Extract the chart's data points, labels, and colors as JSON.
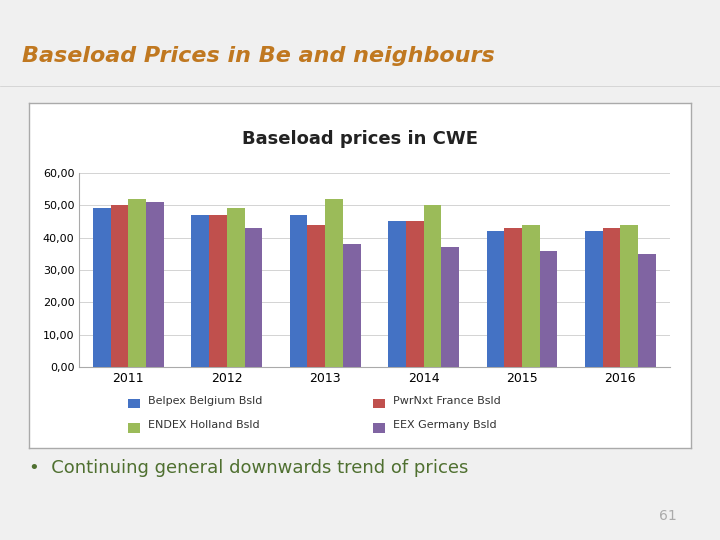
{
  "title": "Baseload prices in CWE",
  "page_title": "Baseload Prices in Be and neighbours",
  "bullet": "Continuing general downwards trend of prices",
  "page_number": "61",
  "years": [
    2011,
    2012,
    2013,
    2014,
    2015,
    2016
  ],
  "series": [
    {
      "label": "Belpex Belgium Bsld",
      "color": "#4472C4",
      "values": [
        49,
        47,
        47,
        45,
        42,
        42
      ]
    },
    {
      "label": "PwrNxt France Bsld",
      "color": "#C0504D",
      "values": [
        50,
        47,
        44,
        45,
        43,
        43
      ]
    },
    {
      "label": "ENDEX Holland Bsld",
      "color": "#9BBB59",
      "values": [
        52,
        49,
        52,
        50,
        44,
        44
      ]
    },
    {
      "label": "EEX Germany Bsld",
      "color": "#8064A2",
      "values": [
        51,
        43,
        38,
        37,
        36,
        35
      ]
    }
  ],
  "ylim": [
    0,
    60
  ],
  "yticks": [
    0,
    10,
    20,
    30,
    40,
    50,
    60
  ],
  "ytick_labels": [
    "0,00",
    "10,00",
    "20,00",
    "30,00",
    "40,00",
    "50,00",
    "60,00"
  ],
  "slide_bg": "#F0F0F0",
  "chart_panel_bg": "#FFFFFF",
  "chart_panel_border": "#AAAAAA",
  "title_color": "#C07820",
  "title_fontsize": 16,
  "bullet_color": "#4F7030",
  "bullet_fontsize": 13,
  "footer_bg": "#4D4D4D",
  "footer_right_bg": "#333333",
  "footer_text_color": "#FFFFFF",
  "footer_number_color": "#AAAAAA",
  "bar_width": 0.18,
  "grid_color": "#CCCCCC",
  "chart_title_fontsize": 13,
  "legend_fontsize": 8
}
